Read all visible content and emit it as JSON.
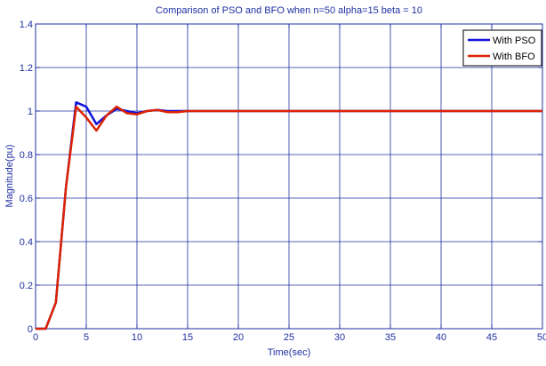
{
  "chart_data": {
    "type": "line",
    "title": "Comparison of PSO and BFO when n=50 alpha=15 beta = 10",
    "xlabel": "Time(sec)",
    "ylabel": "Magnitude(pu)",
    "xlim": [
      0,
      50
    ],
    "ylim": [
      0,
      1.4
    ],
    "xticks": [
      "0",
      "5",
      "10",
      "15",
      "20",
      "25",
      "30",
      "35",
      "40",
      "45",
      "50"
    ],
    "yticks": [
      "0",
      "0.2",
      "0.4",
      "0.6",
      "0.8",
      "1",
      "1.2",
      "1.4"
    ],
    "grid": true,
    "legend_position": "top-right",
    "series": [
      {
        "name": "With PSO",
        "color": "#1111dd",
        "x": [
          0,
          1,
          2,
          3,
          4,
          5,
          6,
          7,
          8,
          9,
          10,
          11,
          12,
          13,
          14,
          15,
          20,
          30,
          40,
          50
        ],
        "y": [
          0,
          0,
          0.12,
          0.65,
          1.04,
          1.02,
          0.94,
          0.98,
          1.01,
          1.0,
          0.99,
          1.0,
          1.005,
          1.0,
          1.0,
          1.0,
          1.0,
          1.0,
          1.0,
          1.0
        ]
      },
      {
        "name": "With BFO",
        "color": "#dd2200",
        "x": [
          0,
          1,
          2,
          3,
          4,
          5,
          6,
          7,
          8,
          9,
          10,
          11,
          12,
          13,
          14,
          15,
          20,
          30,
          40,
          50
        ],
        "y": [
          0,
          0,
          0.12,
          0.65,
          1.02,
          0.97,
          0.91,
          0.98,
          1.02,
          0.99,
          0.985,
          1.0,
          1.005,
          0.995,
          0.995,
          1.0,
          1.0,
          1.0,
          1.0,
          1.0
        ]
      }
    ]
  }
}
